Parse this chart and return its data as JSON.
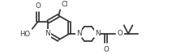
{
  "bg_color": "#ffffff",
  "line_color": "#3a3a3a",
  "text_color": "#3a3a3a",
  "line_width": 1.3,
  "font_size": 5.8,
  "figsize": [
    2.12,
    0.67
  ],
  "dpi": 100,
  "xlim": [
    0,
    212
  ],
  "ylim": [
    0,
    67
  ]
}
